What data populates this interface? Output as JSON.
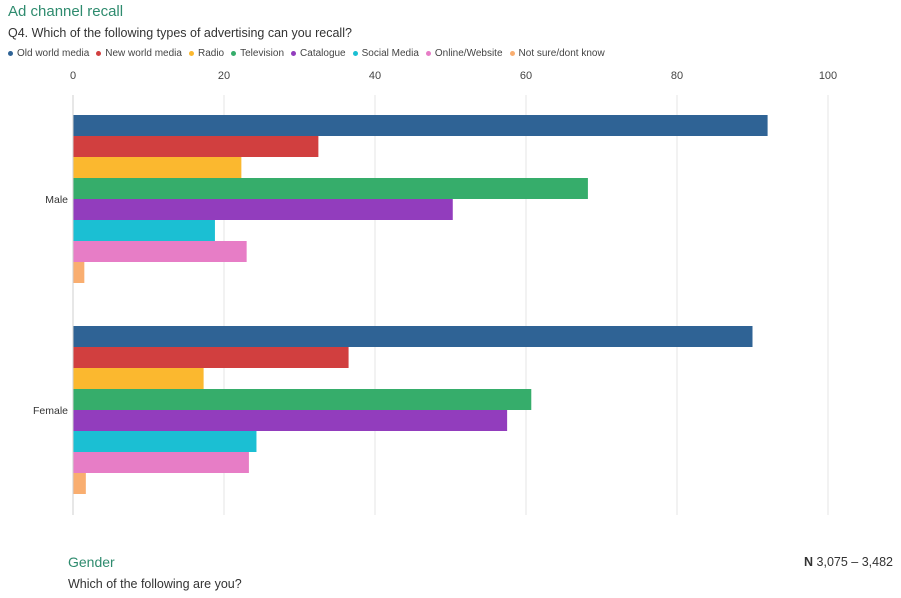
{
  "header": {
    "title": "Ad channel recall",
    "subtitle": "Q4. Which of the following types of advertising can you recall?"
  },
  "footer": {
    "title": "Gender",
    "subtitle": "Which of the following are you?",
    "n_label": "N",
    "n_value": "3,075 – 3,482"
  },
  "chart_data": {
    "type": "bar",
    "orientation": "horizontal",
    "categories": [
      "Male",
      "Female"
    ],
    "series": [
      {
        "name": "Old world media",
        "color": "#2f6395",
        "values": [
          92,
          90
        ]
      },
      {
        "name": "New world media",
        "color": "#d13f3f",
        "values": [
          32.5,
          36.5
        ]
      },
      {
        "name": "Radio",
        "color": "#fbb82f",
        "values": [
          22.3,
          17.3
        ]
      },
      {
        "name": "Television",
        "color": "#36ad6b",
        "values": [
          68.2,
          60.7
        ]
      },
      {
        "name": "Catalogue",
        "color": "#923dbd",
        "values": [
          50.3,
          57.5
        ]
      },
      {
        "name": "Social Media",
        "color": "#1bbfd3",
        "values": [
          18.8,
          24.3
        ]
      },
      {
        "name": "Online/Website",
        "color": "#e77dc6",
        "values": [
          23,
          23.3
        ]
      },
      {
        "name": "Not sure/dont know",
        "color": "#f9ae70",
        "values": [
          1.5,
          1.7
        ]
      }
    ],
    "xlim": [
      0,
      100
    ],
    "xticks": [
      0,
      20,
      40,
      60,
      80,
      100
    ],
    "axis_position": "top",
    "grid": true,
    "legend_position": "top-left"
  }
}
